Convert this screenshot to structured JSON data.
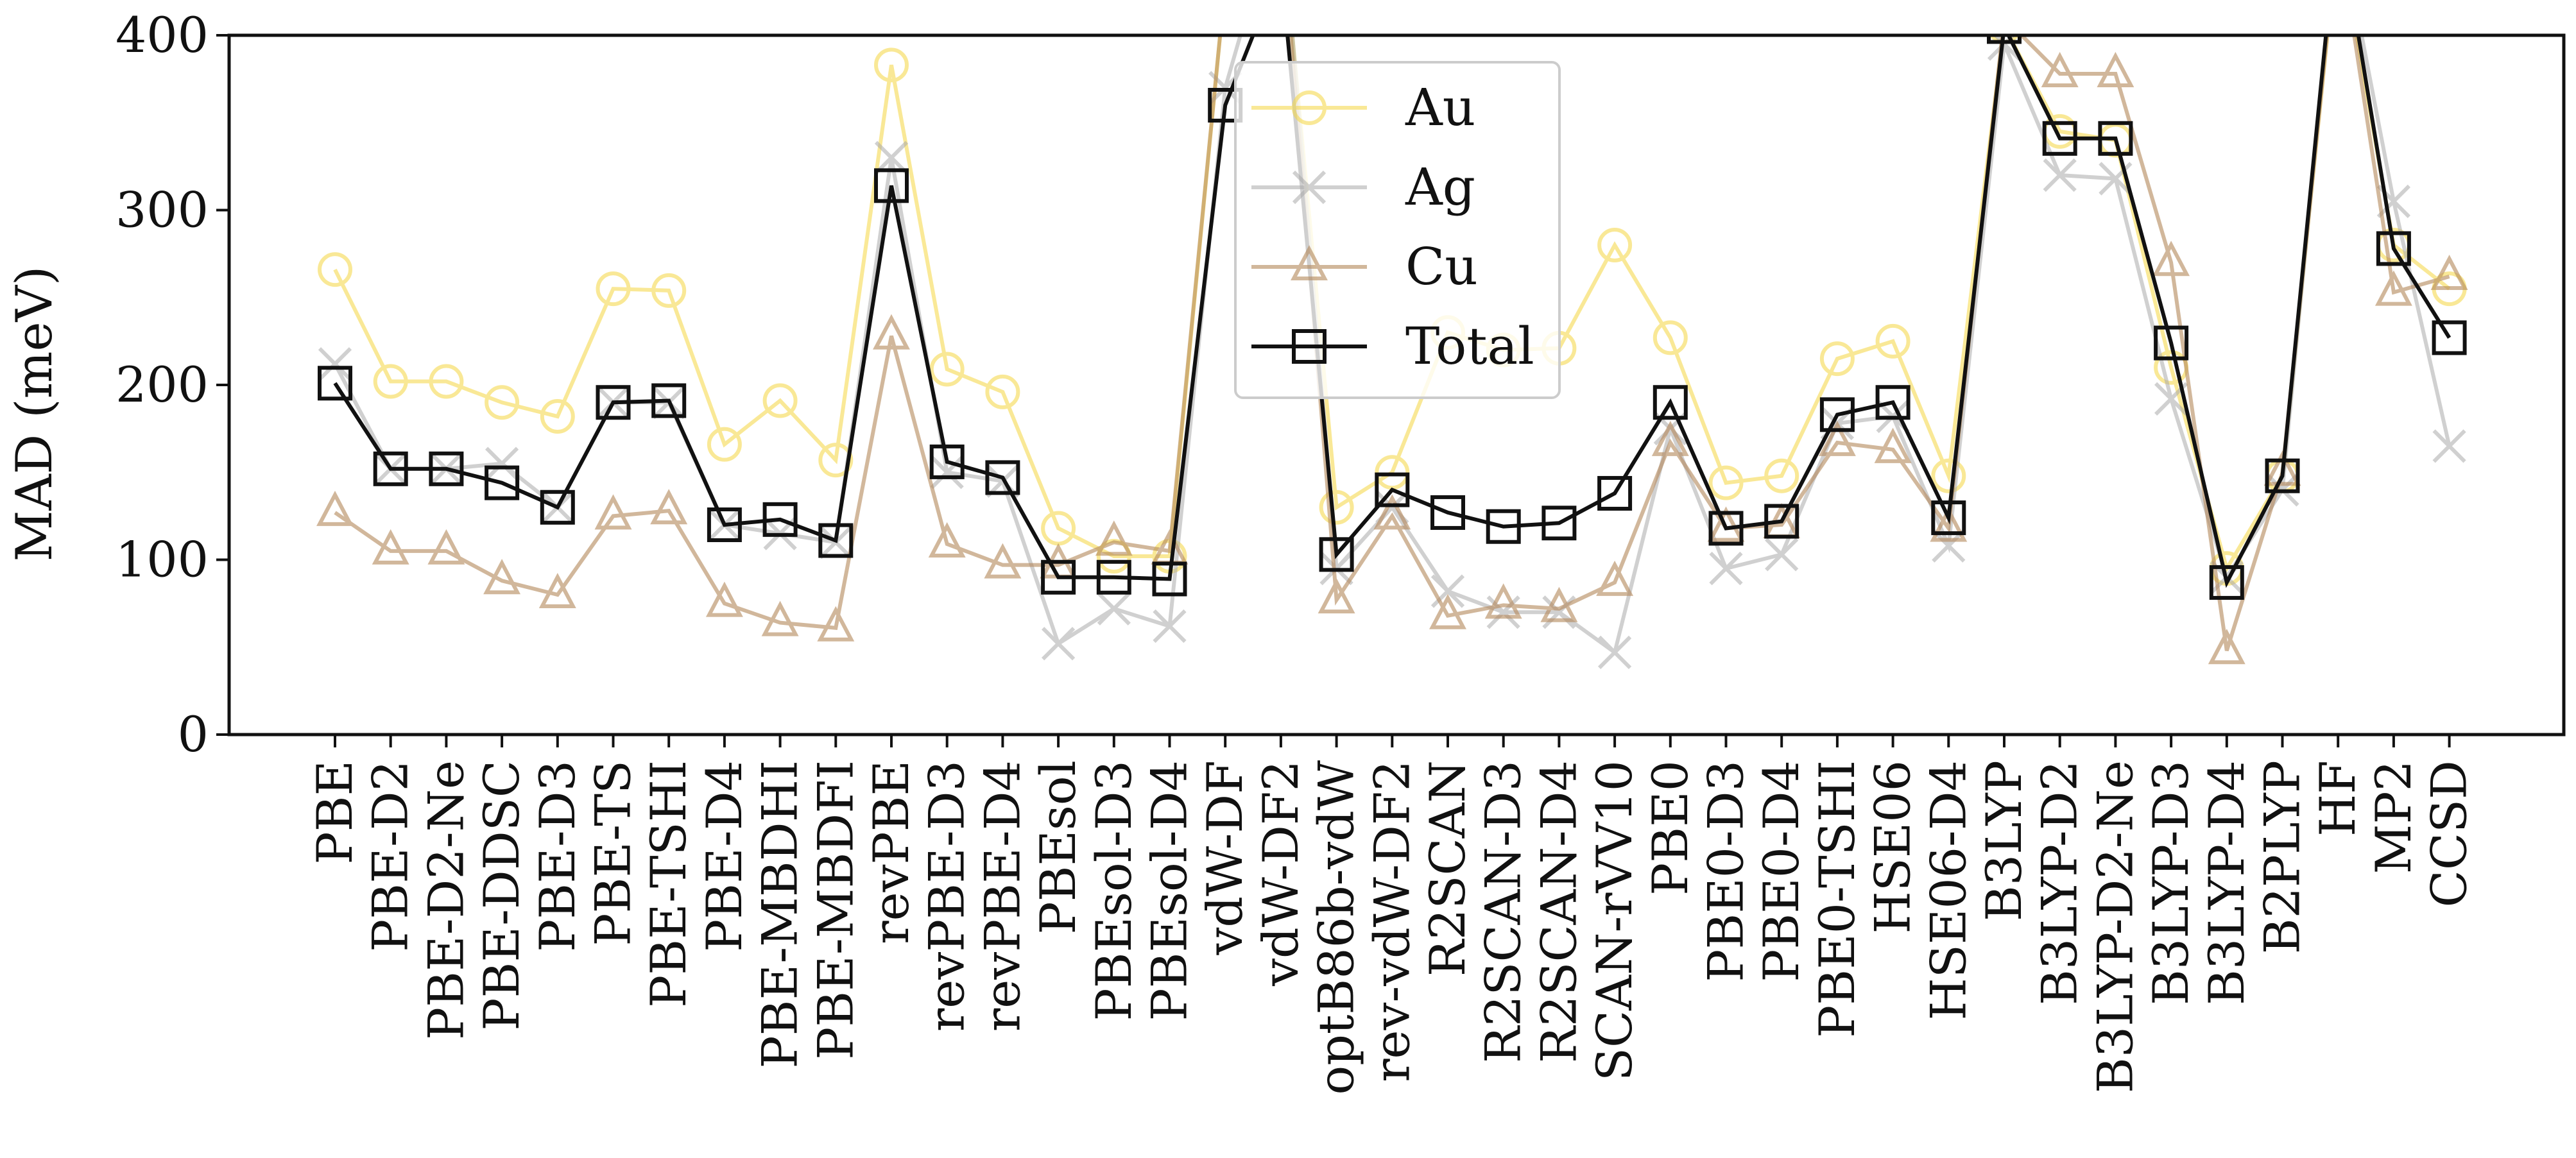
{
  "chart_data": {
    "type": "line",
    "title": "",
    "xlabel": "",
    "ylabel": "MAD (meV)",
    "ylim": [
      0,
      400
    ],
    "yticks": [
      0,
      100,
      200,
      300,
      400
    ],
    "grid": false,
    "legend_position": "upper center",
    "categories": [
      "PBE",
      "PBE-D2",
      "PBE-D2-Ne",
      "PBE-DDSC",
      "PBE-D3",
      "PBE-TS",
      "PBE-TSHI",
      "PBE-D4",
      "PBE-MBDHI",
      "PBE-MBDFI",
      "revPBE",
      "revPBE-D3",
      "revPBE-D4",
      "PBEsol",
      "PBEsol-D3",
      "PBEsol-D4",
      "vdW-DF",
      "vdW-DF2",
      "optB86b-vdW",
      "rev-vdW-DF2",
      "R2SCAN",
      "R2SCAN-D3",
      "R2SCAN-D4",
      "SCAN-rVV10",
      "PBE0",
      "PBE0-D3",
      "PBE0-D4",
      "PBE0-TSHI",
      "HSE06",
      "HSE06-D4",
      "B3LYP",
      "B3LYP-D2",
      "B3LYP-D2-Ne",
      "B3LYP-D3",
      "B3LYP-D4",
      "B2PLYP",
      "HF",
      "MP2",
      "CCSD"
    ],
    "series": [
      {
        "name": "Au",
        "marker": "circle",
        "color": "#f5d742",
        "opacity": 0.55,
        "values": [
          266,
          202,
          202,
          190,
          182,
          255,
          254,
          166,
          191,
          157,
          383,
          209,
          196,
          118,
          102,
          102,
          430,
          470,
          130,
          150,
          230,
          220,
          221,
          280,
          227,
          144,
          148,
          215,
          225,
          148,
          405,
          345,
          340,
          210,
          95,
          148,
          460,
          280,
          255
        ]
      },
      {
        "name": "Ag",
        "marker": "x",
        "color": "#aaaaaa",
        "opacity": 0.55,
        "values": [
          212,
          152,
          152,
          155,
          130,
          190,
          190,
          120,
          115,
          110,
          330,
          150,
          145,
          52,
          72,
          62,
          370,
          480,
          95,
          130,
          82,
          70,
          70,
          47,
          175,
          95,
          103,
          178,
          182,
          108,
          395,
          320,
          318,
          192,
          90,
          140,
          470,
          305,
          165
        ]
      },
      {
        "name": "Cu",
        "marker": "triangle",
        "color": "#b4885a",
        "opacity": 0.6,
        "values": [
          127,
          105,
          105,
          88,
          80,
          125,
          128,
          75,
          64,
          61,
          228,
          109,
          97,
          97,
          110,
          105,
          430,
          470,
          77,
          125,
          68,
          74,
          72,
          87,
          167,
          118,
          120,
          167,
          163,
          118,
          410,
          378,
          378,
          270,
          48,
          150,
          460,
          253,
          262
        ]
      },
      {
        "name": "Total",
        "marker": "square",
        "color": "#111111",
        "opacity": 1.0,
        "values": [
          201,
          152,
          152,
          144,
          130,
          190,
          191,
          120,
          123,
          111,
          314,
          156,
          147,
          90,
          90,
          89,
          360,
          440,
          103,
          140,
          127,
          119,
          121,
          138,
          190,
          118,
          122,
          183,
          190,
          124,
          405,
          341,
          341,
          224,
          87,
          148,
          470,
          278,
          227
        ]
      }
    ]
  }
}
